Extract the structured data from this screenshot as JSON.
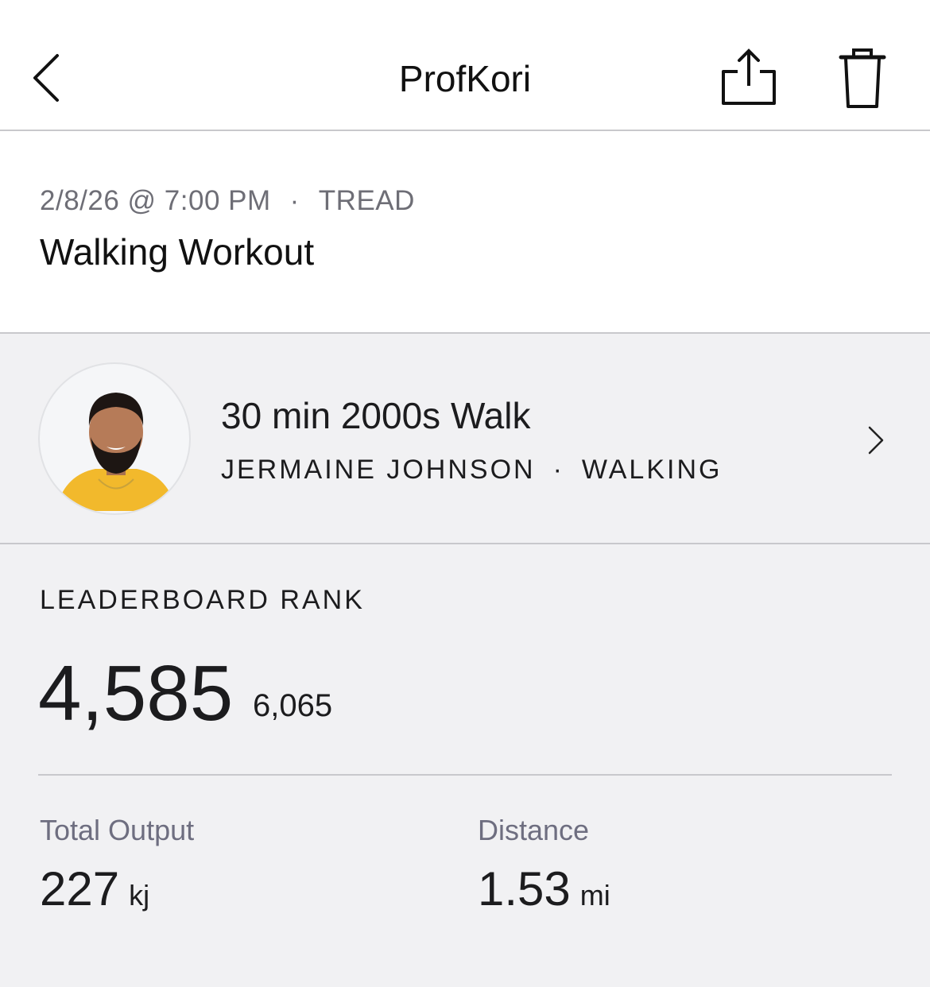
{
  "header": {
    "title": "ProfKori",
    "back_icon": "chevron-left-icon",
    "share_icon": "share-icon",
    "delete_icon": "trash-icon"
  },
  "workout": {
    "date": "2/8/26 @ 7:00 PM",
    "separator": "·",
    "platform": "TREAD",
    "title": "Walking Workout"
  },
  "class": {
    "name": "30 min 2000s Walk",
    "instructor": "JERMAINE JOHNSON",
    "separator": "·",
    "discipline": "WALKING"
  },
  "leaderboard": {
    "label": "LEADERBOARD RANK",
    "rank": "4,585",
    "total": "6,065"
  },
  "stats": [
    {
      "label": "Total Output",
      "value": "227",
      "unit": "kj"
    },
    {
      "label": "Distance",
      "value": "1.53",
      "unit": "mi"
    }
  ],
  "colors": {
    "background": "#f1f1f3",
    "secondary_text": "#6e6e76",
    "divider": "#c8c8cc"
  }
}
